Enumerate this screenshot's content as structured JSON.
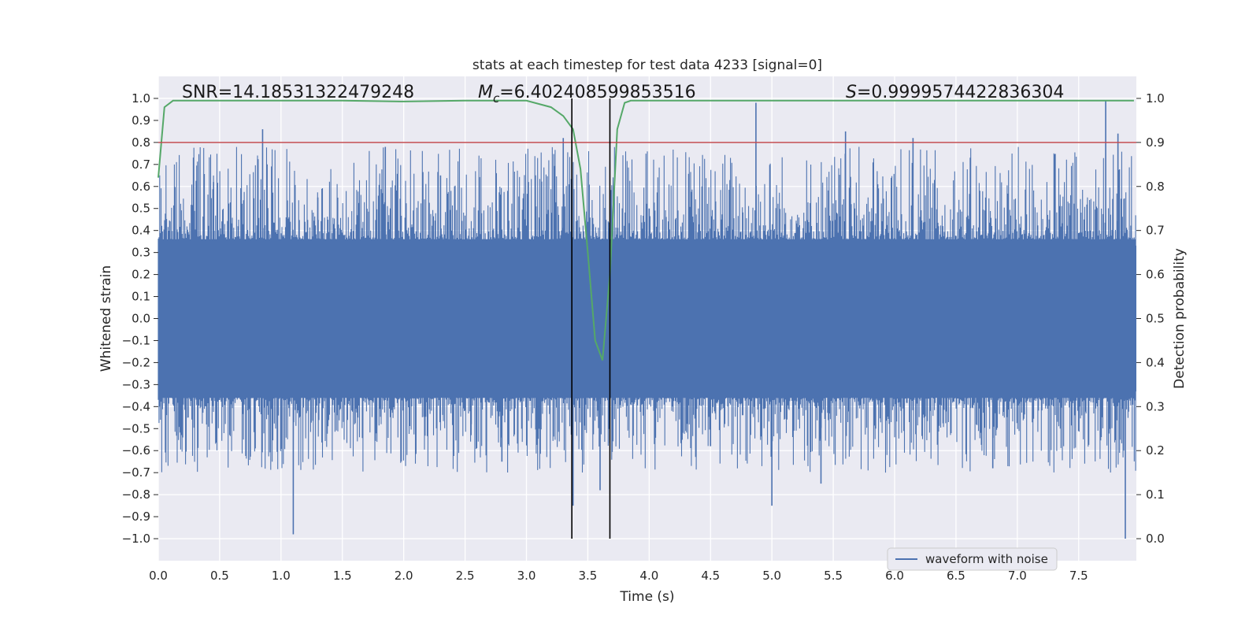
{
  "chart_data": {
    "type": "line",
    "title": "stats at each timestep for test data 4233 [signal=0]",
    "xlabel": "Time (s)",
    "ylabel": "Whitened strain",
    "y2label": "Detection probability",
    "xlim": [
      0.0,
      7.97
    ],
    "ylim": [
      -1.1,
      1.1
    ],
    "y2lim": [
      -0.05,
      1.05
    ],
    "xticks": [
      0.0,
      0.5,
      1.0,
      1.5,
      2.0,
      2.5,
      3.0,
      3.5,
      4.0,
      4.5,
      5.0,
      5.5,
      6.0,
      6.5,
      7.0,
      7.5
    ],
    "xtick_labels": [
      "0.0",
      "0.5",
      "1.0",
      "1.5",
      "2.0",
      "2.5",
      "3.0",
      "3.5",
      "4.0",
      "4.5",
      "5.0",
      "5.5",
      "6.0",
      "6.5",
      "7.0",
      "7.5"
    ],
    "yticks": [
      -1.0,
      -0.9,
      -0.8,
      -0.7,
      -0.6,
      -0.5,
      -0.4,
      -0.3,
      -0.2,
      -0.1,
      0.0,
      0.1,
      0.2,
      0.3,
      0.4,
      0.5,
      0.6,
      0.7,
      0.8,
      0.9,
      1.0
    ],
    "ytick_labels": [
      "−1.0",
      "−0.9",
      "−0.8",
      "−0.7",
      "−0.6",
      "−0.5",
      "−0.4",
      "−0.3",
      "−0.2",
      "−0.1",
      "0.0",
      "0.1",
      "0.2",
      "0.3",
      "0.4",
      "0.5",
      "0.6",
      "0.7",
      "0.8",
      "0.9",
      "1.0"
    ],
    "y2ticks": [
      0.0,
      0.1,
      0.2,
      0.3,
      0.4,
      0.5,
      0.6,
      0.7,
      0.8,
      0.9,
      1.0
    ],
    "y2tick_labels": [
      "0.0",
      "0.1",
      "0.2",
      "0.3",
      "0.4",
      "0.5",
      "0.6",
      "0.7",
      "0.8",
      "0.9",
      "1.0"
    ],
    "annotations": {
      "snr": "SNR=14.18531322479248",
      "mc_symbol": "M",
      "mc_sub": "c",
      "mc_value": "=6.402408599853516",
      "s_symbol": "S",
      "s_value": "=0.9999574422836304"
    },
    "waveform": {
      "name": "waveform with noise",
      "color": "#4c72b0",
      "envelope": 0.36,
      "spikes": [
        [
          0.45,
          0.62
        ],
        [
          0.85,
          0.86
        ],
        [
          1.1,
          -0.98
        ],
        [
          1.3,
          0.55
        ],
        [
          1.85,
          0.78
        ],
        [
          2.3,
          0.65
        ],
        [
          2.55,
          -0.48
        ],
        [
          2.8,
          -0.65
        ],
        [
          3.3,
          0.82
        ],
        [
          3.38,
          -0.85
        ],
        [
          3.6,
          -0.78
        ],
        [
          4.0,
          0.5
        ],
        [
          4.5,
          -0.58
        ],
        [
          4.87,
          0.98
        ],
        [
          5.0,
          -0.85
        ],
        [
          5.4,
          -0.75
        ],
        [
          5.6,
          0.85
        ],
        [
          6.15,
          0.82
        ],
        [
          6.8,
          -0.68
        ],
        [
          7.72,
          0.99
        ],
        [
          7.82,
          0.84
        ],
        [
          7.88,
          -1.0
        ]
      ]
    },
    "detection_probability": {
      "color": "#55a868",
      "points": [
        [
          0.0,
          0.82
        ],
        [
          0.05,
          0.98
        ],
        [
          0.12,
          0.995
        ],
        [
          0.5,
          0.995
        ],
        [
          1.5,
          0.995
        ],
        [
          2.0,
          0.993
        ],
        [
          2.5,
          0.995
        ],
        [
          3.0,
          0.995
        ],
        [
          3.2,
          0.98
        ],
        [
          3.3,
          0.96
        ],
        [
          3.38,
          0.93
        ],
        [
          3.44,
          0.84
        ],
        [
          3.5,
          0.65
        ],
        [
          3.56,
          0.45
        ],
        [
          3.62,
          0.405
        ],
        [
          3.68,
          0.6
        ],
        [
          3.74,
          0.93
        ],
        [
          3.8,
          0.99
        ],
        [
          3.85,
          0.995
        ],
        [
          4.5,
          0.995
        ],
        [
          5.5,
          0.995
        ],
        [
          6.5,
          0.995
        ],
        [
          7.5,
          0.995
        ],
        [
          7.95,
          0.995
        ]
      ]
    },
    "threshold": {
      "value": 0.9,
      "color": "#c44e52"
    },
    "vertical_lines": [
      3.37,
      3.68
    ],
    "legend": {
      "entries": [
        "waveform with noise"
      ],
      "position": "lower-right"
    },
    "grid": true
  }
}
